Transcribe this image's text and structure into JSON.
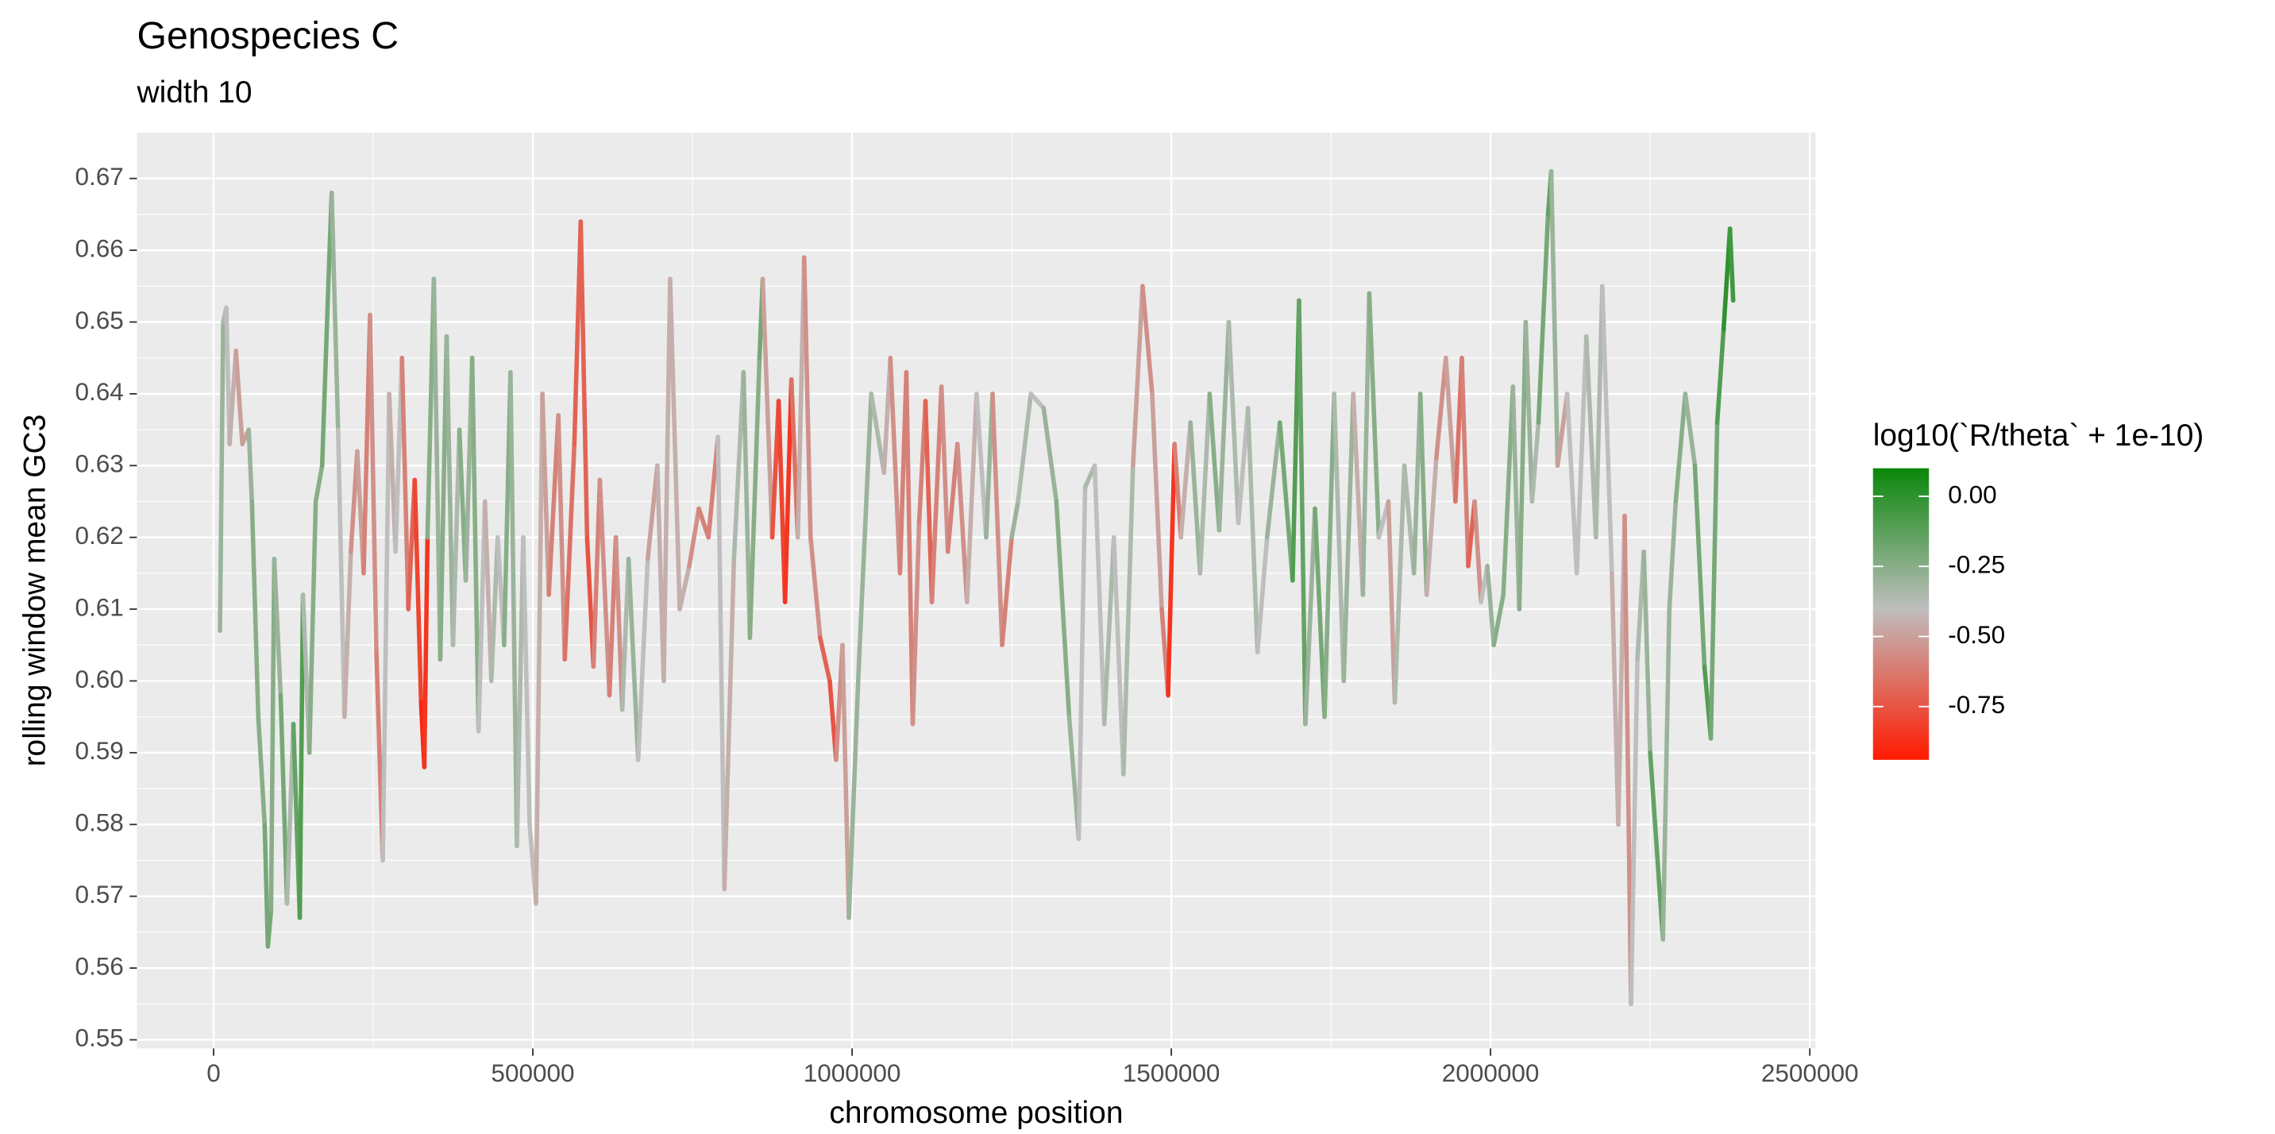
{
  "chart_data": {
    "type": "line",
    "title": "Genospecies C",
    "subtitle": "width 10",
    "x_label": "chromosome position",
    "y_label": "rolling window mean GC3",
    "xlim": [
      -120000,
      2509000
    ],
    "ylim": [
      0.5488,
      0.6764
    ],
    "xticks": [
      0,
      500000,
      1000000,
      1500000,
      2000000,
      2500000
    ],
    "minor_xticks": [
      250000,
      750000,
      1250000,
      1750000,
      2250000
    ],
    "yticks": [
      0.55,
      0.56,
      0.57,
      0.58,
      0.59,
      {
        "value": 0.6,
        "label": "0.60"
      },
      0.61,
      0.62,
      0.63,
      0.64,
      0.65,
      0.66,
      0.67
    ],
    "minor_yticks": [
      0.555,
      0.565,
      0.575,
      0.585,
      0.595,
      0.605,
      0.615,
      0.625,
      0.635,
      0.645,
      0.655,
      0.665
    ],
    "grid": true,
    "x": [
      10000,
      15000,
      20000,
      25000,
      35000,
      45000,
      55000,
      60000,
      70000,
      80000,
      85000,
      90000,
      95000,
      105000,
      115000,
      125000,
      135000,
      140000,
      150000,
      160000,
      170000,
      180000,
      185000,
      195000,
      205000,
      215000,
      225000,
      235000,
      245000,
      255000,
      265000,
      275000,
      285000,
      295000,
      305000,
      315000,
      325000,
      330000,
      335000,
      345000,
      355000,
      365000,
      375000,
      385000,
      395000,
      405000,
      415000,
      425000,
      435000,
      445000,
      455000,
      465000,
      475000,
      485000,
      495000,
      505000,
      515000,
      525000,
      540000,
      550000,
      565000,
      575000,
      585000,
      595000,
      605000,
      620000,
      630000,
      640000,
      650000,
      665000,
      680000,
      695000,
      705000,
      715000,
      730000,
      745000,
      760000,
      775000,
      790000,
      800000,
      815000,
      830000,
      840000,
      855000,
      860000,
      875000,
      885000,
      895000,
      905000,
      915000,
      925000,
      935000,
      950000,
      965000,
      975000,
      985000,
      995000,
      1010000,
      1030000,
      1050000,
      1060000,
      1075000,
      1085000,
      1095000,
      1105000,
      1115000,
      1125000,
      1140000,
      1150000,
      1165000,
      1180000,
      1195000,
      1210000,
      1220000,
      1235000,
      1250000,
      1260000,
      1280000,
      1300000,
      1320000,
      1340000,
      1355000,
      1365000,
      1380000,
      1395000,
      1410000,
      1425000,
      1440000,
      1455000,
      1470000,
      1485000,
      1495000,
      1505000,
      1515000,
      1530000,
      1545000,
      1560000,
      1575000,
      1590000,
      1605000,
      1620000,
      1635000,
      1650000,
      1670000,
      1690000,
      1700000,
      1710000,
      1725000,
      1740000,
      1755000,
      1770000,
      1785000,
      1800000,
      1810000,
      1825000,
      1840000,
      1850000,
      1865000,
      1880000,
      1890000,
      1900000,
      1915000,
      1930000,
      1945000,
      1955000,
      1965000,
      1975000,
      1985000,
      1995000,
      2005000,
      2020000,
      2035000,
      2045000,
      2055000,
      2065000,
      2075000,
      2090000,
      2095000,
      2105000,
      2120000,
      2135000,
      2150000,
      2165000,
      2175000,
      2190000,
      2200000,
      2210000,
      2220000,
      2230000,
      2240000,
      2250000,
      2260000,
      2270000,
      2280000,
      2290000,
      2305000,
      2320000,
      2335000,
      2345000,
      2355000,
      2365000,
      2375000,
      2380000
    ],
    "values": [
      0.607,
      0.65,
      0.652,
      0.633,
      0.646,
      0.633,
      0.635,
      0.625,
      0.595,
      0.58,
      0.563,
      0.568,
      0.617,
      0.598,
      0.569,
      0.594,
      0.567,
      0.612,
      0.59,
      0.625,
      0.63,
      0.656,
      0.668,
      0.635,
      0.595,
      0.618,
      0.632,
      0.615,
      0.651,
      0.604,
      0.575,
      0.64,
      0.618,
      0.645,
      0.61,
      0.628,
      0.597,
      0.588,
      0.62,
      0.656,
      0.603,
      0.648,
      0.605,
      0.635,
      0.614,
      0.645,
      0.593,
      0.625,
      0.6,
      0.62,
      0.605,
      0.643,
      0.577,
      0.62,
      0.58,
      0.569,
      0.64,
      0.612,
      0.637,
      0.603,
      0.633,
      0.664,
      0.62,
      0.602,
      0.628,
      0.598,
      0.62,
      0.596,
      0.617,
      0.589,
      0.617,
      0.63,
      0.6,
      0.656,
      0.61,
      0.616,
      0.624,
      0.62,
      0.634,
      0.571,
      0.617,
      0.643,
      0.606,
      0.645,
      0.656,
      0.62,
      0.639,
      0.611,
      0.642,
      0.62,
      0.659,
      0.62,
      0.606,
      0.6,
      0.589,
      0.605,
      0.567,
      0.601,
      0.64,
      0.629,
      0.645,
      0.615,
      0.643,
      0.594,
      0.622,
      0.639,
      0.611,
      0.641,
      0.618,
      0.633,
      0.611,
      0.64,
      0.62,
      0.64,
      0.605,
      0.62,
      0.625,
      0.64,
      0.638,
      0.625,
      0.595,
      0.578,
      0.627,
      0.63,
      0.594,
      0.62,
      0.587,
      0.63,
      0.655,
      0.64,
      0.61,
      0.598,
      0.633,
      0.62,
      0.636,
      0.615,
      0.64,
      0.621,
      0.65,
      0.622,
      0.638,
      0.604,
      0.62,
      0.636,
      0.614,
      0.653,
      0.594,
      0.624,
      0.595,
      0.64,
      0.6,
      0.64,
      0.612,
      0.654,
      0.62,
      0.625,
      0.597,
      0.63,
      0.615,
      0.64,
      0.612,
      0.631,
      0.645,
      0.625,
      0.645,
      0.616,
      0.625,
      0.611,
      0.616,
      0.605,
      0.612,
      0.641,
      0.61,
      0.65,
      0.625,
      0.636,
      0.665,
      0.671,
      0.63,
      0.64,
      0.615,
      0.648,
      0.62,
      0.655,
      0.615,
      0.58,
      0.623,
      0.555,
      0.603,
      0.618,
      0.59,
      0.577,
      0.564,
      0.61,
      0.625,
      0.64,
      0.63,
      0.602,
      0.592,
      0.636,
      0.649,
      0.663,
      0.653
    ],
    "color_values": [
      -0.3,
      -0.3,
      -0.35,
      -0.4,
      -0.45,
      -0.5,
      -0.5,
      -0.3,
      -0.25,
      -0.25,
      -0.2,
      -0.2,
      -0.25,
      -0.3,
      -0.2,
      -0.35,
      -0.15,
      -0.1,
      -0.35,
      -0.25,
      -0.25,
      -0.2,
      -0.2,
      -0.3,
      -0.4,
      -0.45,
      -0.55,
      -0.5,
      -0.6,
      -0.55,
      -0.6,
      -0.4,
      -0.45,
      -0.4,
      -0.6,
      -0.7,
      -0.8,
      -0.9,
      -0.85,
      -0.25,
      -0.3,
      -0.25,
      -0.3,
      -0.35,
      -0.25,
      -0.3,
      -0.25,
      -0.4,
      -0.45,
      -0.35,
      -0.4,
      -0.25,
      -0.3,
      -0.35,
      -0.4,
      -0.4,
      -0.45,
      -0.5,
      -0.6,
      -0.55,
      -0.65,
      -0.7,
      -0.7,
      -0.75,
      -0.6,
      -0.55,
      -0.6,
      -0.55,
      -0.35,
      -0.3,
      -0.4,
      -0.5,
      -0.45,
      -0.45,
      -0.45,
      -0.45,
      -0.55,
      -0.6,
      -0.6,
      -0.4,
      -0.45,
      -0.35,
      -0.3,
      -0.25,
      -0.2,
      -0.5,
      -0.75,
      -0.8,
      -0.85,
      -0.65,
      -0.45,
      -0.55,
      -0.55,
      -0.7,
      -0.75,
      -0.55,
      -0.5,
      -0.3,
      -0.3,
      -0.35,
      -0.45,
      -0.55,
      -0.6,
      -0.6,
      -0.55,
      -0.6,
      -0.7,
      -0.6,
      -0.55,
      -0.6,
      -0.55,
      -0.45,
      -0.4,
      -0.3,
      -0.55,
      -0.6,
      -0.3,
      -0.35,
      -0.4,
      -0.3,
      -0.25,
      -0.3,
      -0.4,
      -0.35,
      -0.4,
      -0.35,
      -0.4,
      -0.35,
      -0.5,
      -0.55,
      -0.5,
      -0.6,
      -0.85,
      -0.6,
      -0.45,
      -0.3,
      -0.35,
      -0.25,
      -0.3,
      -0.35,
      -0.4,
      -0.35,
      -0.4,
      -0.3,
      -0.2,
      -0.1,
      -0.15,
      -0.3,
      -0.2,
      -0.25,
      -0.35,
      -0.3,
      -0.45,
      -0.3,
      -0.25,
      -0.4,
      -0.5,
      -0.35,
      -0.35,
      -0.3,
      -0.25,
      -0.45,
      -0.55,
      -0.5,
      -0.65,
      -0.6,
      -0.7,
      -0.55,
      -0.4,
      -0.3,
      -0.25,
      -0.25,
      -0.3,
      -0.25,
      -0.3,
      -0.35,
      -0.2,
      -0.15,
      -0.3,
      -0.5,
      -0.4,
      -0.4,
      -0.35,
      -0.35,
      -0.4,
      -0.45,
      -0.45,
      -0.55,
      -0.4,
      -0.35,
      -0.3,
      -0.15,
      -0.15,
      -0.3,
      -0.3,
      -0.25,
      -0.3,
      -0.2,
      -0.1,
      -0.2,
      -0.1,
      0.0,
      -0.05
    ],
    "colorbar": {
      "title": "log10(`R/theta` + 1e-10)",
      "lim": [
        -0.94,
        0.1
      ],
      "midpoint": -0.4,
      "colors": [
        "#ff1a00",
        "#bebebe",
        "#0a870a"
      ],
      "ticks": [
        {
          "value": 0,
          "label": "0.00"
        },
        -0.25,
        {
          "value": -0.5,
          "label": "-0.50"
        },
        -0.75
      ]
    }
  }
}
